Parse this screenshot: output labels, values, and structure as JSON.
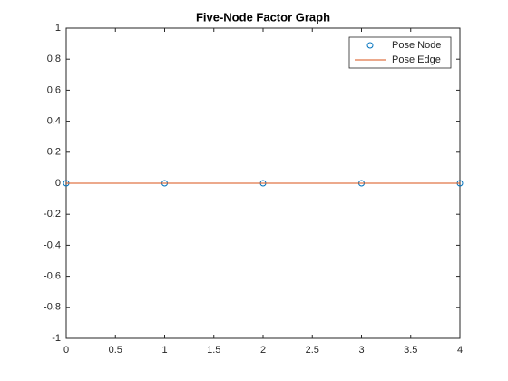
{
  "chart_data": {
    "type": "line",
    "title": "Five-Node Factor Graph",
    "x": [
      0,
      1,
      2,
      3,
      4
    ],
    "series": [
      {
        "name": "Pose Node",
        "type": "scatter",
        "color": "#0072bd",
        "values": [
          0,
          0,
          0,
          0,
          0
        ]
      },
      {
        "name": "Pose Edge",
        "type": "line",
        "color": "#d95319",
        "values": [
          0,
          0,
          0,
          0,
          0
        ]
      }
    ],
    "xlim": [
      0,
      4
    ],
    "xticks": [
      0,
      0.5,
      1,
      1.5,
      2,
      2.5,
      3,
      3.5,
      4
    ],
    "ylim": [
      -1,
      1
    ],
    "yticks": [
      -1,
      -0.8,
      -0.6,
      -0.4,
      -0.2,
      0,
      0.2,
      0.4,
      0.6,
      0.8,
      1
    ],
    "grid": false,
    "legend": "northeast"
  }
}
